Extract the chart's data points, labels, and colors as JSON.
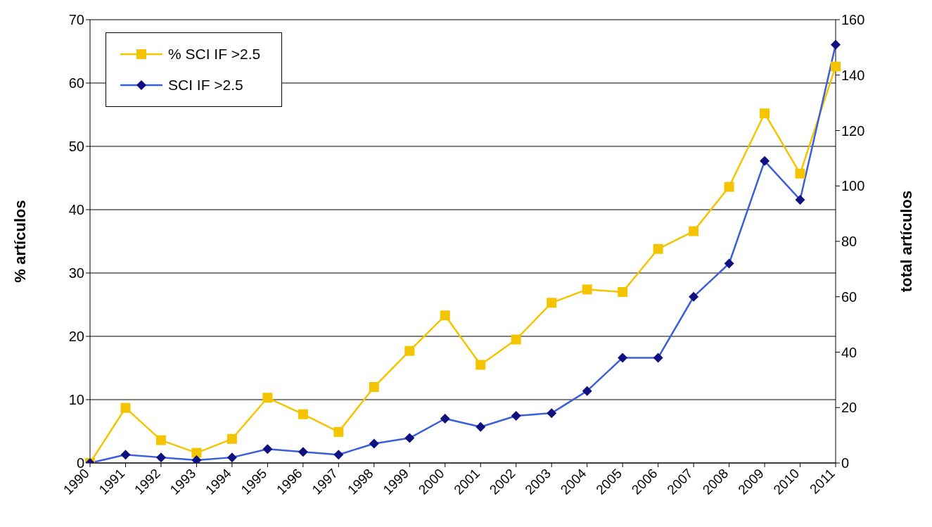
{
  "chart_data": {
    "type": "line",
    "ylabel": "% artículos",
    "y2label": "total artículos",
    "categories": [
      "1990",
      "1991",
      "1992",
      "1993",
      "1994",
      "1995",
      "1996",
      "1997",
      "1998",
      "1999",
      "2000",
      "2001",
      "2002",
      "2003",
      "2004",
      "2005",
      "2006",
      "2007",
      "2008",
      "2009",
      "2010",
      "2011"
    ],
    "series": [
      {
        "name": "% SCI IF >2.5",
        "color": "#f5c400",
        "marker": "square",
        "values": [
          0,
          8.7,
          3.6,
          1.6,
          3.8,
          10.3,
          7.7,
          4.9,
          12,
          17.7,
          23.3,
          15.5,
          19.5,
          25.3,
          27.4,
          27,
          33.8,
          36.6,
          43.6,
          55.2,
          45.7,
          62.6
        ]
      },
      {
        "name": "SCI IF >2.5",
        "color": "#3b5fd9",
        "marker": "diamond",
        "axis": "y2",
        "values": [
          0,
          3,
          2,
          1,
          2,
          5,
          4,
          3,
          7,
          9,
          16,
          13,
          17,
          18,
          26,
          38,
          38,
          60,
          72,
          109,
          95,
          151
        ]
      }
    ],
    "ylim": [
      0,
      70
    ],
    "yticks": [
      0,
      10,
      20,
      30,
      40,
      50,
      60,
      70
    ],
    "y2lim": [
      0,
      160
    ],
    "y2ticks": [
      0,
      20,
      40,
      60,
      80,
      100,
      120,
      140,
      160
    ],
    "grid": "y",
    "legend": "top left",
    "line_style": "solid"
  }
}
